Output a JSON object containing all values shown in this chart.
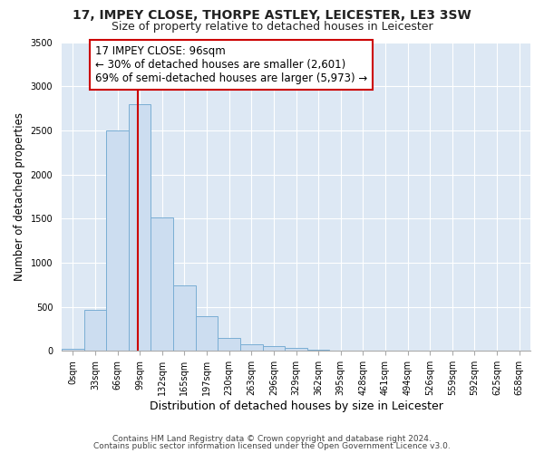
{
  "title1": "17, IMPEY CLOSE, THORPE ASTLEY, LEICESTER, LE3 3SW",
  "title2": "Size of property relative to detached houses in Leicester",
  "xlabel": "Distribution of detached houses by size in Leicester",
  "ylabel": "Number of detached properties",
  "bin_labels": [
    "0sqm",
    "33sqm",
    "66sqm",
    "99sqm",
    "132sqm",
    "165sqm",
    "197sqm",
    "230sqm",
    "263sqm",
    "296sqm",
    "329sqm",
    "362sqm",
    "395sqm",
    "428sqm",
    "461sqm",
    "494sqm",
    "526sqm",
    "559sqm",
    "592sqm",
    "625sqm",
    "658sqm"
  ],
  "bin_values": [
    20,
    470,
    2500,
    2800,
    1510,
    740,
    390,
    150,
    75,
    50,
    30,
    15,
    8,
    4,
    2,
    1,
    0,
    0,
    0,
    0,
    0
  ],
  "bar_color": "#ccddf0",
  "bar_edge_color": "#7aaed4",
  "vline_color": "#cc0000",
  "annotation_line1": "17 IMPEY CLOSE: 96sqm",
  "annotation_line2": "← 30% of detached houses are smaller (2,601)",
  "annotation_line3": "69% of semi-detached houses are larger (5,973) →",
  "annotation_box_edge": "#cc0000",
  "ylim": [
    0,
    3500
  ],
  "yticks": [
    0,
    500,
    1000,
    1500,
    2000,
    2500,
    3000,
    3500
  ],
  "footer1": "Contains HM Land Registry data © Crown copyright and database right 2024.",
  "footer2": "Contains public sector information licensed under the Open Government Licence v3.0.",
  "bg_color": "#dde8f4",
  "title1_fontsize": 10,
  "title2_fontsize": 9,
  "xlabel_fontsize": 9,
  "ylabel_fontsize": 8.5,
  "tick_fontsize": 7,
  "annotation_fontsize": 8.5,
  "footer_fontsize": 6.5
}
